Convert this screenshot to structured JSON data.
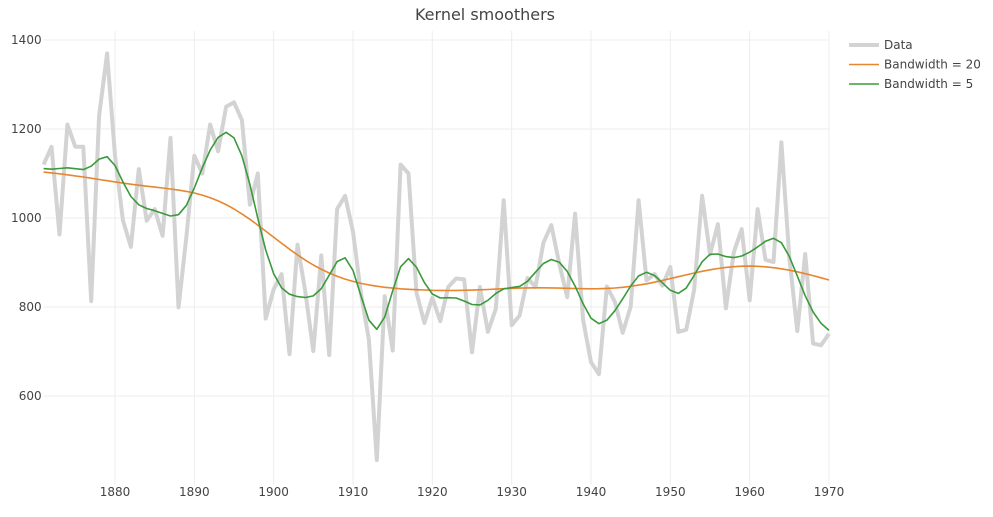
{
  "chart_data": {
    "type": "line",
    "title": "Kernel smoothers",
    "xlabel": "",
    "ylabel": "",
    "xlim": [
      1871,
      1970
    ],
    "ylim": [
      400,
      1420
    ],
    "x_ticks": [
      "1880",
      "1890",
      "1900",
      "1910",
      "1920",
      "1930",
      "1940",
      "1950",
      "1960",
      "1970"
    ],
    "y_ticks": [
      "600",
      "800",
      "1000",
      "1200",
      "1400"
    ],
    "grid": true,
    "legend_position": "top-right",
    "x_start": 1871,
    "series": [
      {
        "name": "Data",
        "color": "#d3d3d3",
        "kind": "raw",
        "values": [
          1120,
          1160,
          963,
          1210,
          1160,
          1160,
          813,
          1230,
          1370,
          1140,
          995,
          935,
          1110,
          994,
          1020,
          960,
          1180,
          799,
          958,
          1140,
          1100,
          1210,
          1150,
          1250,
          1260,
          1220,
          1030,
          1100,
          774,
          840,
          874,
          694,
          940,
          833,
          701,
          916,
          692,
          1020,
          1050,
          969,
          831,
          726,
          456,
          824,
          702,
          1120,
          1100,
          832,
          764,
          821,
          768,
          845,
          864,
          862,
          698,
          845,
          744,
          796,
          1040,
          759,
          781,
          865,
          845,
          944,
          984,
          897,
          822,
          1010,
          771,
          676,
          649,
          846,
          812,
          742,
          801,
          1040,
          860,
          874,
          848,
          890,
          744,
          749,
          838,
          1050,
          918,
          986,
          797,
          923,
          975,
          815,
          1020,
          906,
          901,
          1170,
          912,
          746,
          919,
          718,
          714,
          740
        ]
      },
      {
        "name": "Bandwidth = 20",
        "color": "#e8862f",
        "kind": "kernel",
        "bandwidth": 20
      },
      {
        "name": "Bandwidth = 5",
        "color": "#3b9a3b",
        "kind": "kernel",
        "bandwidth": 5
      }
    ]
  }
}
